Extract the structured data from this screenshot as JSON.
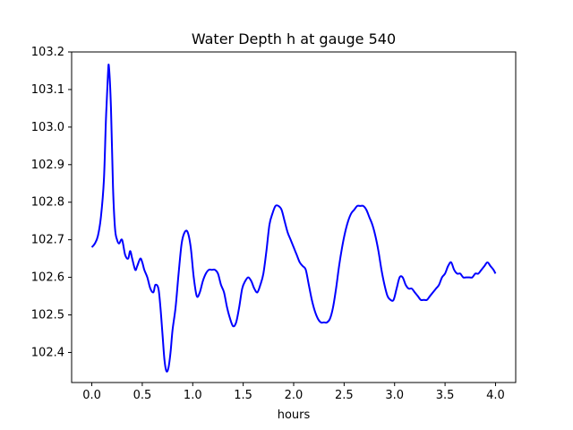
{
  "chart_data": {
    "type": "line",
    "title": "Water Depth h at gauge 540",
    "xlabel": "hours",
    "ylabel": "",
    "xlim": [
      -0.2,
      4.2
    ],
    "ylim": [
      102.32,
      103.2
    ],
    "xticks": [
      0.0,
      0.5,
      1.0,
      1.5,
      2.0,
      2.5,
      3.0,
      3.5,
      4.0
    ],
    "xtick_labels": [
      "0.0",
      "0.5",
      "1.0",
      "1.5",
      "2.0",
      "2.5",
      "3.0",
      "3.5",
      "4.0"
    ],
    "yticks": [
      102.4,
      102.5,
      102.6,
      102.7,
      102.8,
      102.9,
      103.0,
      103.1,
      103.2
    ],
    "ytick_labels": [
      "102.4",
      "102.5",
      "102.6",
      "102.7",
      "102.8",
      "102.9",
      "103.0",
      "103.1",
      "103.2"
    ],
    "grid": false,
    "series": [
      {
        "name": "",
        "color": "#0000ff",
        "x": [
          0.0,
          0.03,
          0.06,
          0.09,
          0.12,
          0.14,
          0.16,
          0.17,
          0.19,
          0.21,
          0.23,
          0.25,
          0.27,
          0.3,
          0.33,
          0.36,
          0.38,
          0.4,
          0.43,
          0.45,
          0.48,
          0.5,
          0.52,
          0.55,
          0.58,
          0.61,
          0.63,
          0.66,
          0.68,
          0.7,
          0.72,
          0.74,
          0.76,
          0.78,
          0.8,
          0.83,
          0.86,
          0.89,
          0.92,
          0.95,
          0.98,
          1.01,
          1.04,
          1.07,
          1.1,
          1.13,
          1.16,
          1.19,
          1.22,
          1.25,
          1.28,
          1.31,
          1.34,
          1.37,
          1.4,
          1.43,
          1.46,
          1.49,
          1.52,
          1.55,
          1.58,
          1.61,
          1.64,
          1.67,
          1.7,
          1.73,
          1.76,
          1.79,
          1.82,
          1.85,
          1.88,
          1.91,
          1.94,
          1.97,
          2.0,
          2.03,
          2.06,
          2.09,
          2.12,
          2.15,
          2.18,
          2.21,
          2.24,
          2.27,
          2.3,
          2.33,
          2.36,
          2.39,
          2.42,
          2.45,
          2.48,
          2.51,
          2.54,
          2.57,
          2.6,
          2.63,
          2.66,
          2.69,
          2.72,
          2.75,
          2.78,
          2.81,
          2.84,
          2.87,
          2.9,
          2.93,
          2.96,
          2.99,
          3.02,
          3.05,
          3.08,
          3.11,
          3.14,
          3.17,
          3.2,
          3.23,
          3.26,
          3.29,
          3.32,
          3.35,
          3.38,
          3.41,
          3.44,
          3.47,
          3.5,
          3.53,
          3.56,
          3.59,
          3.62,
          3.65,
          3.68,
          3.71,
          3.74,
          3.77,
          3.8,
          3.83,
          3.86,
          3.89,
          3.92,
          3.95,
          3.98,
          4.0
        ],
        "y": [
          102.68,
          102.69,
          102.71,
          102.76,
          102.86,
          103.02,
          103.14,
          103.16,
          103.05,
          102.84,
          102.73,
          102.7,
          102.69,
          102.7,
          102.66,
          102.65,
          102.67,
          102.65,
          102.62,
          102.63,
          102.65,
          102.64,
          102.62,
          102.6,
          102.57,
          102.56,
          102.58,
          102.57,
          102.52,
          102.45,
          102.38,
          102.35,
          102.36,
          102.4,
          102.46,
          102.52,
          102.61,
          102.69,
          102.72,
          102.72,
          102.68,
          102.6,
          102.55,
          102.56,
          102.59,
          102.61,
          102.62,
          102.62,
          102.62,
          102.61,
          102.58,
          102.56,
          102.52,
          102.49,
          102.47,
          102.48,
          102.52,
          102.57,
          102.59,
          102.6,
          102.59,
          102.57,
          102.56,
          102.58,
          102.61,
          102.67,
          102.74,
          102.77,
          102.79,
          102.79,
          102.78,
          102.75,
          102.72,
          102.7,
          102.68,
          102.66,
          102.64,
          102.63,
          102.62,
          102.58,
          102.54,
          102.51,
          102.49,
          102.48,
          102.48,
          102.48,
          102.49,
          102.52,
          102.57,
          102.63,
          102.68,
          102.72,
          102.75,
          102.77,
          102.78,
          102.79,
          102.79,
          102.79,
          102.78,
          102.76,
          102.74,
          102.71,
          102.67,
          102.62,
          102.58,
          102.55,
          102.54,
          102.54,
          102.57,
          102.6,
          102.6,
          102.58,
          102.57,
          102.57,
          102.56,
          102.55,
          102.54,
          102.54,
          102.54,
          102.55,
          102.56,
          102.57,
          102.58,
          102.6,
          102.61,
          102.63,
          102.64,
          102.62,
          102.61,
          102.61,
          102.6,
          102.6,
          102.6,
          102.6,
          102.61,
          102.61,
          102.62,
          102.63,
          102.64,
          102.63,
          102.62,
          102.61
        ]
      }
    ]
  }
}
